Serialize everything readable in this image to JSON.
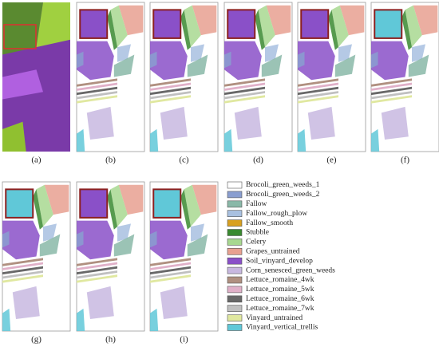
{
  "panels": [
    {
      "label": "(a)"
    },
    {
      "label": "(b)"
    },
    {
      "label": "(c)"
    },
    {
      "label": "(d)"
    },
    {
      "label": "(e)"
    },
    {
      "label": "(f)"
    },
    {
      "label": "(g)"
    },
    {
      "label": "(h)"
    },
    {
      "label": "(i)"
    }
  ],
  "legend": [
    {
      "label": "Brocoli_green_weeds_1",
      "color": "#ffffff"
    },
    {
      "label": "Brocoli_green_weeds_2",
      "color": "#8a9ed0"
    },
    {
      "label": "Fallow",
      "color": "#8ab8a8"
    },
    {
      "label": "Fallow_rough_plow",
      "color": "#a8c0e0"
    },
    {
      "label": "Fallow_smooth",
      "color": "#d8a020"
    },
    {
      "label": "Stubble",
      "color": "#3a8a30"
    },
    {
      "label": "Celery",
      "color": "#a8d890"
    },
    {
      "label": "Grapes_untrained",
      "color": "#e8a090"
    },
    {
      "label": "Soil_vinyard_develop",
      "color": "#8a50c8"
    },
    {
      "label": "Corn_senesced_green_weeds",
      "color": "#c8b8e0"
    },
    {
      "label": "Lettuce_romaine_4wk",
      "color": "#b09080"
    },
    {
      "label": "Lettuce_romaine_5wk",
      "color": "#e0b0c8"
    },
    {
      "label": "Lettuce_romaine_6wk",
      "color": "#686868"
    },
    {
      "label": "Lettuce_romaine_7wk",
      "color": "#c0c0c0"
    },
    {
      "label": "Vinyard_untrained",
      "color": "#e0e8a0"
    },
    {
      "label": "Vinyard_vertical_trellis",
      "color": "#60c8d8"
    }
  ]
}
